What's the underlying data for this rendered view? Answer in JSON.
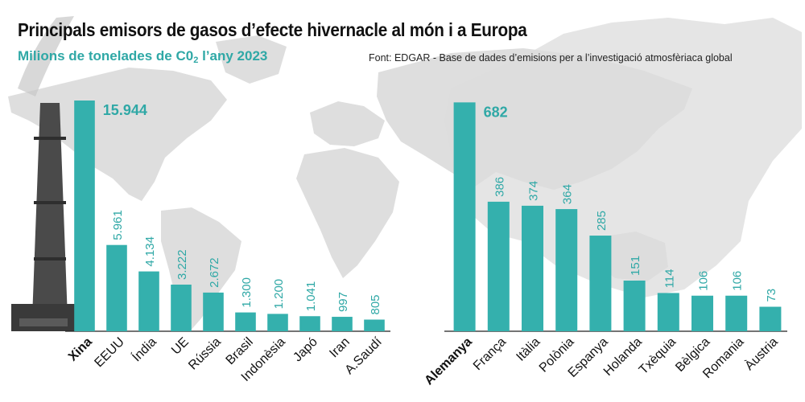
{
  "header": {
    "title": "Principals emisors de gasos d’efecte hivernacle al món i a Europa",
    "subtitle_main": "Milions de tonelades de C0",
    "subtitle_sub": "2",
    "subtitle_tail": " l’any 2023",
    "source": "Font: EDGAR - Base de dades d’emisions per a l’investigació atmosfèriaca global"
  },
  "colors": {
    "bar": "#34b0ad",
    "highlight_value": "#2fa8a6",
    "value_label": "#2fa8a6",
    "map": "#dcdcdc",
    "axis": "#222222",
    "chimney": "#4a4a4a"
  },
  "decor": {
    "background": "world-map-silhouette",
    "left_image": "smokestack-chimney-image"
  },
  "chart_data": [
    {
      "type": "bar",
      "title": "",
      "categories": [
        "Xina",
        "EEUU",
        "Índia",
        "UE",
        "Rússia",
        "Brasil",
        "Indonèsia",
        "Japó",
        "Iran",
        "A.Saudí"
      ],
      "values": [
        15944,
        5961,
        4134,
        3222,
        2672,
        1300,
        1200,
        1041,
        997,
        805
      ],
      "labels": [
        "15.944",
        "5.961",
        "4.134",
        "3.222",
        "2.672",
        "1.300",
        "1.200",
        "1.041",
        "997",
        "805"
      ],
      "highlight_index": 0,
      "xlabel": "",
      "ylabel": "",
      "ylim": [
        0,
        16000
      ],
      "grid": false
    },
    {
      "type": "bar",
      "title": "",
      "categories": [
        "Alemanya",
        "França",
        "Itàlia",
        "Polònia",
        "Espanya",
        "Holanda",
        "Txèquia",
        "Bèlgica",
        "Romania",
        "Àustria"
      ],
      "values": [
        682,
        386,
        374,
        364,
        285,
        151,
        114,
        106,
        106,
        73
      ],
      "labels": [
        "682",
        "386",
        "374",
        "364",
        "285",
        "151",
        "114",
        "106",
        "106",
        "73"
      ],
      "highlight_index": 0,
      "xlabel": "",
      "ylabel": "",
      "ylim": [
        0,
        690
      ],
      "grid": false
    }
  ]
}
